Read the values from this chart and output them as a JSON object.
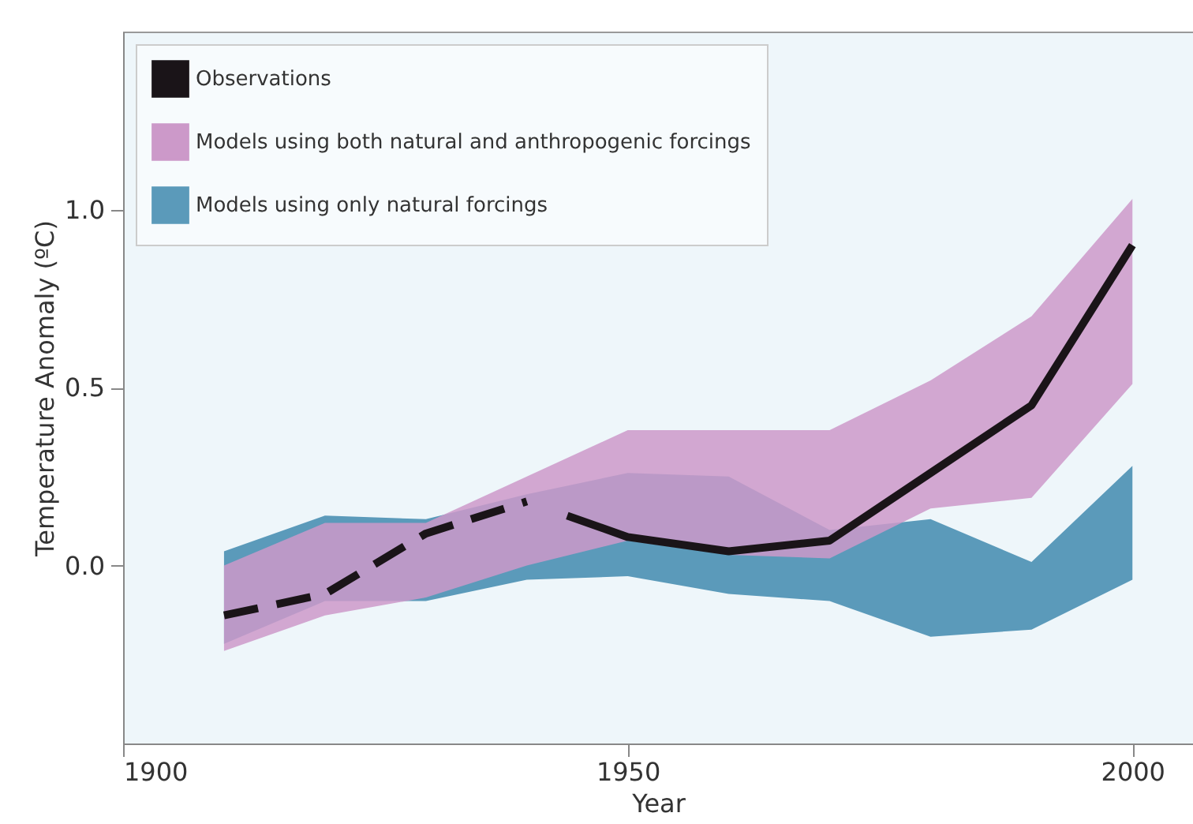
{
  "chart_data": {
    "type": "line",
    "xlabel": "Year",
    "ylabel": "Temperature Anomaly (ºC)",
    "xlim": [
      1900,
      2006
    ],
    "xticks": [
      1900,
      1950,
      2000
    ],
    "ylim": [
      -0.5,
      1.5
    ],
    "yticks": [
      {
        "value": 0,
        "label": "0.0"
      },
      {
        "value": 0.5,
        "label": "0.5"
      },
      {
        "value": 1,
        "label": "1.0"
      }
    ],
    "grid": false,
    "legend": "top left",
    "series": [
      {
        "name": "Models using only natural forcings",
        "type": "area",
        "color": "#5b9aba",
        "x": [
          1910,
          1920,
          1930,
          1940,
          1950,
          1960,
          1970,
          1980,
          1990,
          2000
        ],
        "values": [
          null,
          null,
          null,
          null,
          null,
          null,
          null,
          null,
          null,
          null
        ],
        "lower": [
          -0.22,
          -0.1,
          -0.1,
          -0.04,
          -0.03,
          -0.08,
          -0.1,
          -0.2,
          -0.18,
          -0.04
        ],
        "upper": [
          0.04,
          0.14,
          0.13,
          0.2,
          0.26,
          0.25,
          0.1,
          0.13,
          0.01,
          0.28
        ]
      },
      {
        "name": "Models using both natural and anthropogenic forcings",
        "type": "area",
        "color": "#cc99c9",
        "x": [
          1910,
          1920,
          1930,
          1940,
          1950,
          1960,
          1970,
          1980,
          1990,
          2000
        ],
        "values": [
          null,
          null,
          null,
          null,
          null,
          null,
          null,
          null,
          null,
          null
        ],
        "lower": [
          -0.24,
          -0.14,
          -0.09,
          0.0,
          0.07,
          0.03,
          0.02,
          0.16,
          0.19,
          0.51
        ],
        "upper": [
          0.0,
          0.12,
          0.12,
          0.25,
          0.38,
          0.38,
          0.38,
          0.52,
          0.7,
          1.03
        ]
      },
      {
        "type": "line",
        "color": "#1a1418",
        "line_style": "dashed",
        "x": [
          1910,
          1920,
          1930,
          1940
        ],
        "values": [
          -0.14,
          -0.08,
          0.09,
          0.18
        ]
      },
      {
        "name": "Observations",
        "type": "line",
        "color": "#1a1418",
        "line_style": "solid",
        "x": [
          1944,
          1950,
          1960,
          1970,
          1980,
          1990,
          2000
        ],
        "values": [
          0.14,
          0.08,
          0.04,
          0.07,
          0.26,
          0.45,
          0.9
        ]
      }
    ]
  }
}
